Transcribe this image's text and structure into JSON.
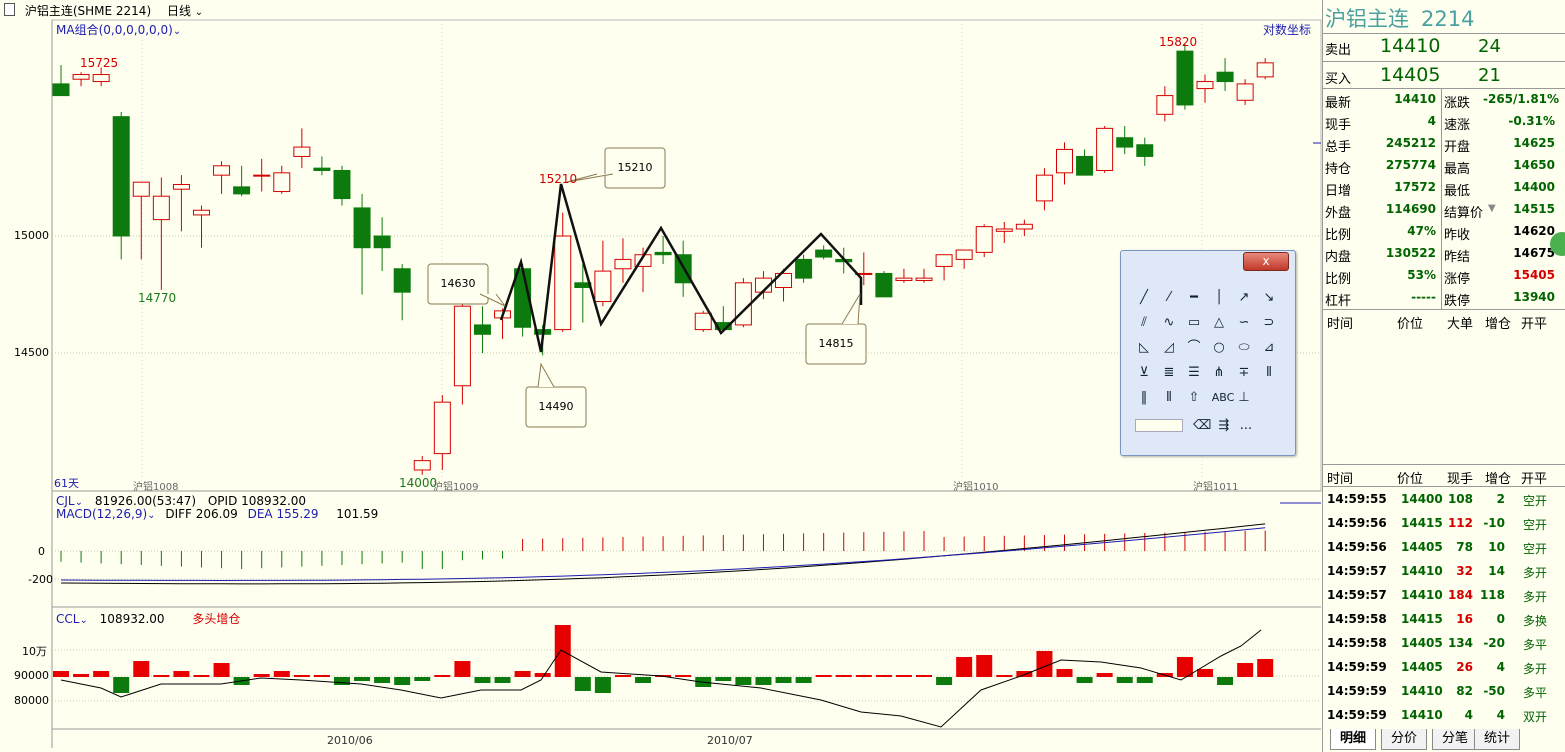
{
  "header": {
    "app_icon": "document-icon",
    "title": "沪铝主连(SHME 2214)",
    "period": "日线",
    "ma_label": "MA组合(0,0,0,0,0,0)",
    "log_axis": "对数坐标"
  },
  "chart_data": {
    "type": "candlestick",
    "y_ticks": [
      15000,
      14500
    ],
    "labels": {
      "high1": "15725",
      "low1": "14770",
      "mid_high": "15210",
      "low_bottom": "14000",
      "high_right": "15820"
    },
    "callouts": [
      "14630",
      "15210",
      "14490",
      "14815"
    ],
    "month_labels": [
      "沪铝1008",
      "沪铝1009",
      "沪铝1010",
      "沪铝1011"
    ],
    "days_label": "61天",
    "bottom_dates": [
      "2010/06",
      "2010/07"
    ],
    "candles": [
      {
        "o": 15650,
        "h": 15730,
        "l": 15600,
        "c": 15600
      },
      {
        "o": 15670,
        "h": 15700,
        "l": 15640,
        "c": 15690
      },
      {
        "o": 15660,
        "h": 15720,
        "l": 15640,
        "c": 15690
      },
      {
        "o": 15510,
        "h": 15530,
        "l": 14900,
        "c": 15000
      },
      {
        "o": 15170,
        "h": 15230,
        "l": 14900,
        "c": 15230
      },
      {
        "o": 15070,
        "h": 15250,
        "l": 14770,
        "c": 15170
      },
      {
        "o": 15200,
        "h": 15260,
        "l": 15020,
        "c": 15220
      },
      {
        "o": 15090,
        "h": 15130,
        "l": 14950,
        "c": 15110
      },
      {
        "o": 15260,
        "h": 15320,
        "l": 15180,
        "c": 15300
      },
      {
        "o": 15210,
        "h": 15300,
        "l": 15170,
        "c": 15180
      },
      {
        "o": 15260,
        "h": 15330,
        "l": 15190,
        "c": 15260
      },
      {
        "o": 15190,
        "h": 15300,
        "l": 15180,
        "c": 15270
      },
      {
        "o": 15340,
        "h": 15460,
        "l": 15290,
        "c": 15380
      },
      {
        "o": 15290,
        "h": 15340,
        "l": 15260,
        "c": 15280
      },
      {
        "o": 15280,
        "h": 15300,
        "l": 15130,
        "c": 15160
      },
      {
        "o": 15120,
        "h": 15180,
        "l": 14750,
        "c": 14950
      },
      {
        "o": 15000,
        "h": 15080,
        "l": 14850,
        "c": 14950
      },
      {
        "o": 14860,
        "h": 14880,
        "l": 14640,
        "c": 14760
      },
      {
        "o": 14000,
        "h": 14060,
        "l": 13980,
        "c": 14040
      },
      {
        "o": 14070,
        "h": 14320,
        "l": 14000,
        "c": 14290
      },
      {
        "o": 14360,
        "h": 14770,
        "l": 14280,
        "c": 14700
      },
      {
        "o": 14620,
        "h": 14700,
        "l": 14500,
        "c": 14580
      },
      {
        "o": 14650,
        "h": 14690,
        "l": 14560,
        "c": 14680
      },
      {
        "o": 14860,
        "h": 14880,
        "l": 14570,
        "c": 14610
      },
      {
        "o": 14600,
        "h": 14620,
        "l": 14490,
        "c": 14580
      },
      {
        "o": 14600,
        "h": 15100,
        "l": 14590,
        "c": 15000
      },
      {
        "o": 14800,
        "h": 14880,
        "l": 14630,
        "c": 14780
      },
      {
        "o": 14720,
        "h": 14980,
        "l": 14700,
        "c": 14850
      },
      {
        "o": 14860,
        "h": 14990,
        "l": 14800,
        "c": 14900
      },
      {
        "o": 14870,
        "h": 14950,
        "l": 14760,
        "c": 14920
      },
      {
        "o": 14930,
        "h": 15000,
        "l": 14880,
        "c": 14920
      },
      {
        "o": 14920,
        "h": 14980,
        "l": 14740,
        "c": 14800
      },
      {
        "o": 14600,
        "h": 14680,
        "l": 14590,
        "c": 14670
      },
      {
        "o": 14630,
        "h": 14700,
        "l": 14600,
        "c": 14600
      },
      {
        "o": 14620,
        "h": 14820,
        "l": 14610,
        "c": 14800
      },
      {
        "o": 14760,
        "h": 14850,
        "l": 14730,
        "c": 14820
      },
      {
        "o": 14780,
        "h": 14860,
        "l": 14720,
        "c": 14840
      },
      {
        "o": 14900,
        "h": 14920,
        "l": 14800,
        "c": 14820
      },
      {
        "o": 14940,
        "h": 14960,
        "l": 14900,
        "c": 14910
      },
      {
        "o": 14900,
        "h": 14950,
        "l": 14840,
        "c": 14890
      },
      {
        "o": 14840,
        "h": 14930,
        "l": 14790,
        "c": 14840
      },
      {
        "o": 14840,
        "h": 14850,
        "l": 14740,
        "c": 14740
      },
      {
        "o": 14810,
        "h": 14860,
        "l": 14800,
        "c": 14820
      },
      {
        "o": 14810,
        "h": 14860,
        "l": 14800,
        "c": 14820
      },
      {
        "o": 14870,
        "h": 14920,
        "l": 14810,
        "c": 14920
      },
      {
        "o": 14900,
        "h": 14940,
        "l": 14860,
        "c": 14940
      },
      {
        "o": 14930,
        "h": 15050,
        "l": 14910,
        "c": 15040
      },
      {
        "o": 15020,
        "h": 15060,
        "l": 14970,
        "c": 15030
      },
      {
        "o": 15030,
        "h": 15070,
        "l": 15000,
        "c": 15050
      },
      {
        "o": 15150,
        "h": 15290,
        "l": 15110,
        "c": 15260
      },
      {
        "o": 15270,
        "h": 15400,
        "l": 15220,
        "c": 15370
      },
      {
        "o": 15340,
        "h": 15370,
        "l": 15260,
        "c": 15260
      },
      {
        "o": 15280,
        "h": 15470,
        "l": 15270,
        "c": 15460
      },
      {
        "o": 15420,
        "h": 15470,
        "l": 15350,
        "c": 15380
      },
      {
        "o": 15390,
        "h": 15420,
        "l": 15300,
        "c": 15340
      },
      {
        "o": 15520,
        "h": 15640,
        "l": 15490,
        "c": 15600
      },
      {
        "o": 15790,
        "h": 15820,
        "l": 15540,
        "c": 15560
      },
      {
        "o": 15630,
        "h": 15690,
        "l": 15570,
        "c": 15660
      },
      {
        "o": 15700,
        "h": 15760,
        "l": 15620,
        "c": 15660
      },
      {
        "o": 15580,
        "h": 15670,
        "l": 15560,
        "c": 15650
      },
      {
        "o": 15680,
        "h": 15760,
        "l": 15670,
        "c": 15740
      }
    ],
    "cjl": {
      "label": "CJL",
      "value": "81926.00(53:47)",
      "opid_label": "OPID",
      "opid_value": "108932.00"
    },
    "macd": {
      "label": "MACD(12,26,9)",
      "diff_label": "DIFF",
      "diff": "206.09",
      "dea_label": "DEA",
      "dea": "155.29",
      "macd": "101.59",
      "ticks": [
        "0",
        "-200"
      ]
    },
    "ccl": {
      "label": "CCL",
      "value": "108932.00",
      "note": "多头增仓",
      "ticks": [
        "10万",
        "90000",
        "80000"
      ]
    }
  },
  "quote": {
    "name": "沪铝主连",
    "code": "2214",
    "sell_label": "卖出",
    "sell_price": "14410",
    "sell_vol": "24",
    "buy_label": "买入",
    "buy_price": "14405",
    "buy_vol": "21",
    "left": [
      {
        "label": "最新",
        "value": "14410",
        "color": "g"
      },
      {
        "label": "现手",
        "value": "4",
        "color": "g"
      },
      {
        "label": "总手",
        "value": "245212",
        "color": "g"
      },
      {
        "label": "持仓",
        "value": "275774",
        "color": "g"
      },
      {
        "label": "日增",
        "value": "17572",
        "color": "g"
      },
      {
        "label": "外盘",
        "value": "114690",
        "color": "g"
      },
      {
        "label": "比例",
        "value": "47%",
        "color": "g"
      },
      {
        "label": "内盘",
        "value": "130522",
        "color": "g"
      },
      {
        "label": "比例",
        "value": "53%",
        "color": "g"
      },
      {
        "label": "杠杆",
        "value": "-----",
        "color": "g"
      }
    ],
    "right": [
      {
        "label": "涨跌",
        "value": "-265/1.81%",
        "color": "g"
      },
      {
        "label": "速涨",
        "value": "-0.31%",
        "color": "g"
      },
      {
        "label": "开盘",
        "value": "14625",
        "color": "g"
      },
      {
        "label": "最高",
        "value": "14650",
        "color": "g"
      },
      {
        "label": "最低",
        "value": "14400",
        "color": "g"
      },
      {
        "label": "结算价",
        "value": "14515",
        "color": "g"
      },
      {
        "label": "昨收",
        "value": "14620",
        "color": "b"
      },
      {
        "label": "昨结",
        "value": "14675",
        "color": "b"
      },
      {
        "label": "涨停",
        "value": "15405",
        "color": "r"
      },
      {
        "label": "跌停",
        "value": "13940",
        "color": "g"
      }
    ],
    "col_headers_1": [
      "时间",
      "价位",
      "大单",
      "增仓",
      "开平"
    ],
    "col_headers_2": [
      "时间",
      "价位",
      "现手",
      "增仓",
      "开平"
    ],
    "trades": [
      {
        "time": "14:59:55",
        "price": "14400",
        "vol": "108",
        "vol_color": "g",
        "inc": "2",
        "inc_color": "g",
        "type": "空开"
      },
      {
        "time": "14:59:56",
        "price": "14415",
        "vol": "112",
        "vol_color": "r",
        "inc": "-10",
        "inc_color": "g",
        "type": "空开"
      },
      {
        "time": "14:59:56",
        "price": "14405",
        "vol": "78",
        "vol_color": "g",
        "inc": "10",
        "inc_color": "g",
        "type": "空开"
      },
      {
        "time": "14:59:57",
        "price": "14410",
        "vol": "32",
        "vol_color": "r",
        "inc": "14",
        "inc_color": "g",
        "type": "多开"
      },
      {
        "time": "14:59:57",
        "price": "14410",
        "vol": "184",
        "vol_color": "r",
        "inc": "118",
        "inc_color": "g",
        "type": "多开"
      },
      {
        "time": "14:59:58",
        "price": "14415",
        "vol": "16",
        "vol_color": "r",
        "inc": "0",
        "inc_color": "g",
        "type": "多换"
      },
      {
        "time": "14:59:58",
        "price": "14405",
        "vol": "134",
        "vol_color": "g",
        "inc": "-20",
        "inc_color": "g",
        "type": "多平"
      },
      {
        "time": "14:59:59",
        "price": "14405",
        "vol": "26",
        "vol_color": "r",
        "inc": "4",
        "inc_color": "g",
        "type": "多开"
      },
      {
        "time": "14:59:59",
        "price": "14410",
        "vol": "82",
        "vol_color": "g",
        "inc": "-50",
        "inc_color": "g",
        "type": "多平"
      },
      {
        "time": "14:59:59",
        "price": "14410",
        "vol": "4",
        "vol_color": "g",
        "inc": "4",
        "inc_color": "g",
        "type": "双开"
      }
    ],
    "tabs": [
      "明细",
      "分价",
      "分笔",
      "统计"
    ]
  },
  "toolbox": {
    "close": "x",
    "text_tool": "ABC",
    "more": "..."
  }
}
